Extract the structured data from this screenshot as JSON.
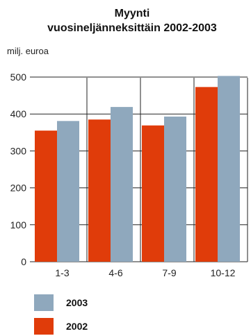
{
  "chart_data": {
    "type": "bar",
    "title": "Myynti",
    "subtitle": "vuosineljänneksittäin 2002-2003",
    "ylabel": "milj. euroa",
    "xlabel": "",
    "categories": [
      "1-3",
      "4-6",
      "7-9",
      "10-12"
    ],
    "series": [
      {
        "name": "2002",
        "color": "#e03c0a",
        "values": [
          355,
          385,
          369,
          473
        ]
      },
      {
        "name": "2003",
        "color": "#8fa8bd",
        "values": [
          381,
          419,
          393,
          503
        ]
      }
    ],
    "ylim": [
      0,
      500
    ],
    "yticks": [
      0,
      100,
      200,
      300,
      400,
      500
    ],
    "grid": true,
    "legend_placement": "bottom",
    "legend_order": [
      "2003",
      "2002"
    ]
  }
}
